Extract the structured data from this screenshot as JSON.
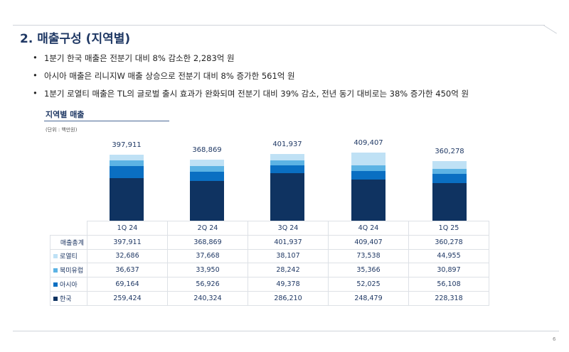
{
  "title": "2. 매출구성 (지역별)",
  "bullets": [
    "1분기 한국 매출은 전분기 대비 8% 감소한 2,283억 원",
    "아시아 매출은 리니지W 매출 상승으로 전분기 대비 8% 증가한 561억 원",
    "1분기 로열티 매출은 TL의 글로벌 출시 효과가 완화되며 전분기 대비 39% 감소, 전년 동기 대비로는 38% 증가한 450억 원"
  ],
  "chart_data": {
    "type": "bar",
    "stacked": true,
    "title": "지역별 매출",
    "unit": "(단위 : 백만원)",
    "categories": [
      "1Q 24",
      "2Q 24",
      "3Q 24",
      "4Q 24",
      "1Q 25"
    ],
    "total_label": "매출총계",
    "totals": [
      "397,911",
      "368,869",
      "401,937",
      "409,407",
      "360,278"
    ],
    "series": [
      {
        "name": "로열티",
        "color": "#bfe1f5",
        "values": [
          32686,
          37668,
          38107,
          73538,
          44955
        ],
        "labels": [
          "32,686",
          "37,668",
          "38,107",
          "73,538",
          "44,955"
        ]
      },
      {
        "name": "북미유럽",
        "color": "#5cb3e4",
        "values": [
          36637,
          33950,
          28242,
          35366,
          30897
        ],
        "labels": [
          "36,637",
          "33,950",
          "28,242",
          "35,366",
          "30,897"
        ]
      },
      {
        "name": "아시아",
        "color": "#0a6fc2",
        "values": [
          69164,
          56926,
          49378,
          52025,
          56108
        ],
        "labels": [
          "69,164",
          "56,926",
          "49,378",
          "52,025",
          "56,108"
        ]
      },
      {
        "name": "한국",
        "color": "#0f3361",
        "values": [
          259424,
          240324,
          286210,
          248479,
          228318
        ],
        "labels": [
          "259,424",
          "240,324",
          "286,210",
          "248,479",
          "228,318"
        ]
      }
    ]
  },
  "page_number": "6"
}
